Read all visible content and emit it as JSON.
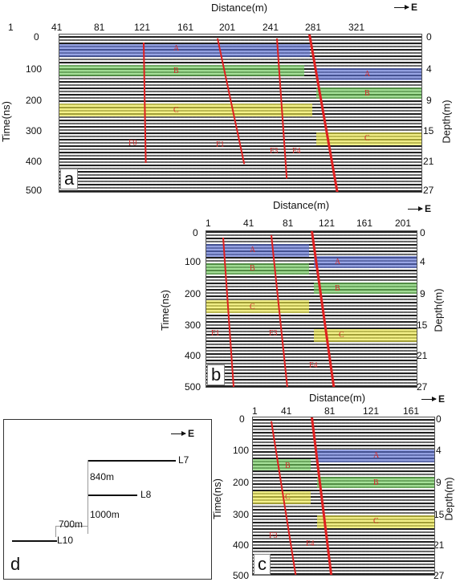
{
  "panel_a": {
    "letter": "a",
    "xaxis_title": "Distance(m)",
    "xticks": [
      "1",
      "41",
      "81",
      "121",
      "161",
      "201",
      "241",
      "281",
      "321"
    ],
    "time_title": "Time(ns)",
    "time_ticks": [
      "0",
      "100",
      "200",
      "300",
      "400",
      "500"
    ],
    "depth_title": "Depth(m)",
    "depth_ticks": [
      "0",
      "4",
      "9",
      "15",
      "21",
      "27"
    ],
    "layers": [
      "A",
      "B",
      "C"
    ],
    "faults": [
      "F0",
      "F1",
      "F3",
      "F4"
    ],
    "east": "E"
  },
  "panel_b": {
    "letter": "b",
    "xaxis_title": "Distance(m)",
    "xticks": [
      "1",
      "41",
      "81",
      "121",
      "161",
      "201"
    ],
    "time_title": "Time(ns)",
    "time_ticks": [
      "0",
      "100",
      "200",
      "300",
      "400",
      "500"
    ],
    "depth_title": "Depth(m)",
    "depth_ticks": [
      "0",
      "4",
      "9",
      "15",
      "21",
      "27"
    ],
    "layers": [
      "A",
      "B",
      "C"
    ],
    "faults": [
      "F1",
      "F3",
      "F4"
    ],
    "east": "E"
  },
  "panel_c": {
    "letter": "c",
    "xaxis_title": "Distance(m)",
    "xticks": [
      "1",
      "41",
      "81",
      "121",
      "161"
    ],
    "time_title": "Time(ns)",
    "time_ticks": [
      "0",
      "100",
      "200",
      "300",
      "400",
      "500"
    ],
    "depth_title": "Depth(m)",
    "depth_ticks": [
      "0",
      "4",
      "9",
      "15",
      "21",
      "27"
    ],
    "layers": [
      "A",
      "B",
      "C"
    ],
    "faults": [
      "F3",
      "F4"
    ],
    "east": "E"
  },
  "panel_d": {
    "letter": "d",
    "east": "E",
    "lines": [
      "L7",
      "L8",
      "L10"
    ],
    "spacings": [
      "840m",
      "1000m",
      "700m"
    ]
  }
}
